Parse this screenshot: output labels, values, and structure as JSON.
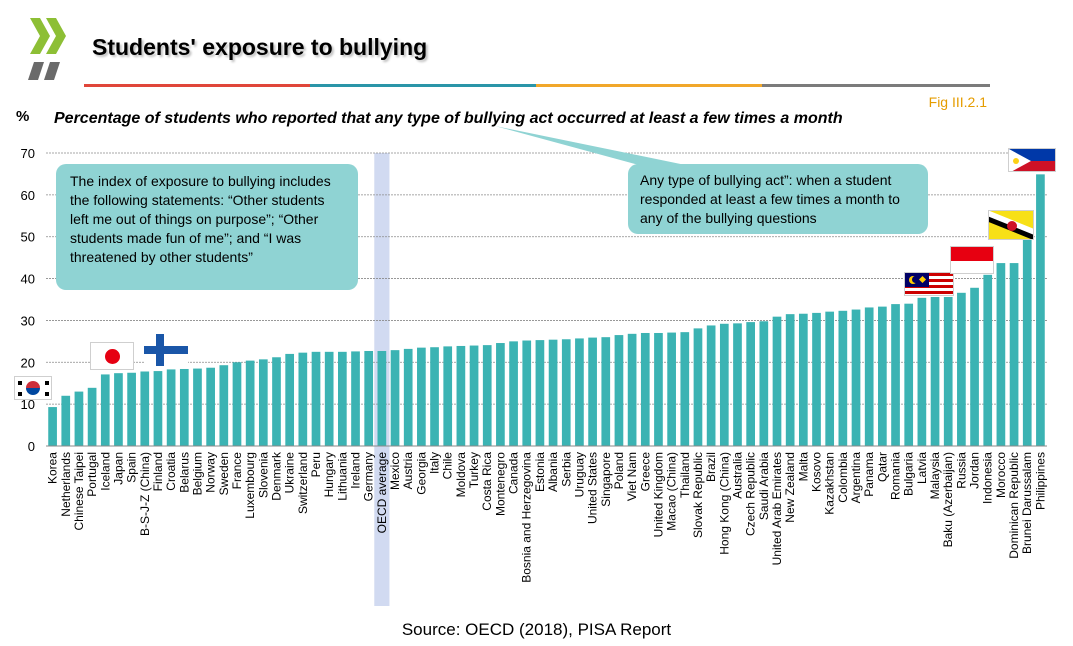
{
  "slide": {
    "title": "Students' exposure to bullying",
    "figure_id": "Fig III.2.1",
    "unit_label": "%",
    "source": "Source: OECD (2018), PISA Report"
  },
  "callouts": {
    "left": "The index of exposure to bullying includes the following statements: “Other students left me out of things on purpose”; “Other students made fun of me”; and “I was threatened by other students”",
    "right": "Any type of bullying act”: when a student responded at least a few times a month to any of the bullying questions"
  },
  "colors": {
    "bar": "#3bb3b3",
    "highlight": "#c9d3ee",
    "rule": [
      "#e0463a",
      "#2a95a8",
      "#f1a72a",
      "#7b7b7b"
    ],
    "logo": "#8dbf35"
  },
  "flags": [
    {
      "name": "korea-flag",
      "country": "Korea"
    },
    {
      "name": "japan-flag",
      "country": "Japan"
    },
    {
      "name": "finland-flag",
      "country": "Finland"
    },
    {
      "name": "malaysia-flag",
      "country": "Malaysia"
    },
    {
      "name": "indonesia-flag",
      "country": "Indonesia"
    },
    {
      "name": "brunei-flag",
      "country": "Brunei Darussalam"
    },
    {
      "name": "philippines-flag",
      "country": "Philippines"
    }
  ],
  "chart_data": {
    "type": "bar",
    "title": "Percentage of students who reported that any type of bullying act occurred at least a few times a month",
    "xlabel": "",
    "ylabel": "%",
    "ylim": [
      0,
      70
    ],
    "yticks": [
      0,
      10,
      20,
      30,
      40,
      50,
      60,
      70
    ],
    "grid": true,
    "highlight_category": "OECD average",
    "categories": [
      "Korea",
      "Netherlands",
      "Chinese Taipei",
      "Portugal",
      "Iceland",
      "Japan",
      "Spain",
      "B-S-J-Z (China)",
      "Finland",
      "Croatia",
      "Belarus",
      "Belgium",
      "Norway",
      "Sweden",
      "France",
      "Luxembourg",
      "Slovenia",
      "Denmark",
      "Ukraine",
      "Switzerland",
      "Peru",
      "Hungary",
      "Lithuania",
      "Ireland",
      "Germany",
      "OECD average",
      "Mexico",
      "Austria",
      "Georgia",
      "Italy",
      "Chile",
      "Moldova",
      "Turkey",
      "Costa Rica",
      "Montenegro",
      "Canada",
      "Bosnia and Herzegovina",
      "Estonia",
      "Albania",
      "Serbia",
      "Uruguay",
      "United States",
      "Singapore",
      "Poland",
      "Viet Nam",
      "Greece",
      "United Kingdom",
      "Macao (China)",
      "Thailand",
      "Slovak Republic",
      "Brazil",
      "Hong Kong (China)",
      "Australia",
      "Czech Republic",
      "Saudi Arabia",
      "United Arab Emirates",
      "New Zealand",
      "Malta",
      "Kosovo",
      "Kazakhstan",
      "Colombia",
      "Argentina",
      "Panama",
      "Qatar",
      "Romania",
      "Bulgaria",
      "Latvia",
      "Malaysia",
      "Baku (Azerbaijan)",
      "Russia",
      "Jordan",
      "Indonesia",
      "Morocco",
      "Dominican Republic",
      "Brunei Darussalam",
      "Philippines"
    ],
    "values": [
      9.3,
      12.0,
      13.0,
      13.9,
      17.1,
      17.4,
      17.5,
      17.8,
      17.9,
      18.3,
      18.4,
      18.5,
      18.7,
      19.3,
      20.0,
      20.4,
      20.7,
      21.2,
      22.0,
      22.3,
      22.5,
      22.5,
      22.5,
      22.6,
      22.7,
      22.7,
      22.9,
      23.2,
      23.5,
      23.6,
      23.8,
      23.9,
      24.0,
      24.1,
      24.6,
      25.0,
      25.2,
      25.3,
      25.4,
      25.5,
      25.7,
      25.9,
      26.0,
      26.5,
      26.8,
      27.0,
      27.0,
      27.1,
      27.2,
      28.1,
      28.8,
      29.2,
      29.3,
      29.6,
      29.8,
      30.9,
      31.5,
      31.6,
      31.8,
      32.1,
      32.3,
      32.6,
      33.1,
      33.3,
      33.9,
      34.0,
      35.4,
      35.6,
      35.6,
      36.6,
      37.8,
      40.9,
      43.7,
      43.7,
      50.5,
      64.9
    ]
  }
}
